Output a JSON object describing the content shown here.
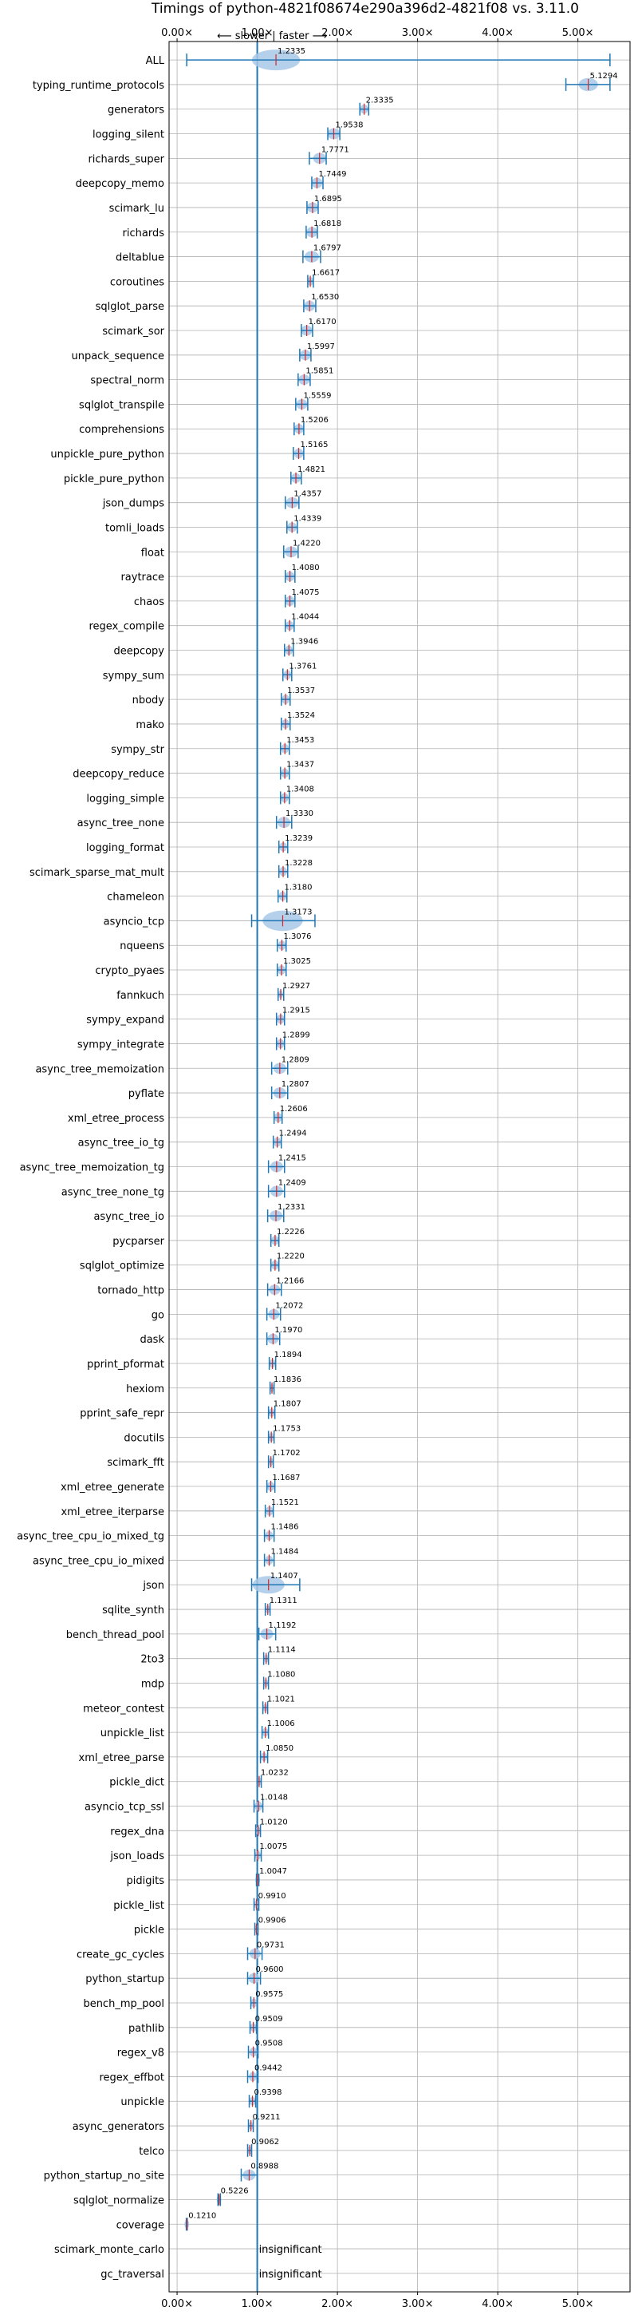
{
  "chart_data": {
    "type": "violin",
    "title": "Timings of python-4821f08674e290a396d2-4821f08 vs. 3.11.0",
    "note": "⟵ slower | faster ⟶",
    "xlim": [
      -0.1,
      5.65
    ],
    "reference_line": 1.0,
    "x_ticks": [
      {
        "v": 0,
        "label": "0.00×"
      },
      {
        "v": 1,
        "label": "1.00×"
      },
      {
        "v": 2,
        "label": "2.00×"
      },
      {
        "v": 3,
        "label": "3.00×"
      },
      {
        "v": 4,
        "label": "4.00×"
      },
      {
        "v": 5,
        "label": "5.00×"
      }
    ],
    "accent_color": "#1f77b4",
    "violin_color": "#a8c8e8",
    "median_color": "#d62728",
    "benchmarks": [
      {
        "name": "ALL",
        "value": 1.2335,
        "label": "1.2335",
        "lo": 0.12,
        "hi": 5.4,
        "spread": 0.3
      },
      {
        "name": "typing_runtime_protocols",
        "value": 5.1294,
        "label": "5.1294",
        "lo": 4.85,
        "hi": 5.4,
        "spread": 0.12
      },
      {
        "name": "generators",
        "value": 2.3335,
        "label": "2.3335",
        "lo": 2.28,
        "hi": 2.39,
        "spread": 0.05
      },
      {
        "name": "logging_silent",
        "value": 1.9538,
        "label": "1.9538",
        "lo": 1.88,
        "hi": 2.03,
        "spread": 0.08
      },
      {
        "name": "richards_super",
        "value": 1.7771,
        "label": "1.7771",
        "lo": 1.65,
        "hi": 1.86,
        "spread": 0.08
      },
      {
        "name": "deepcopy_memo",
        "value": 1.7449,
        "label": "1.7449",
        "lo": 1.68,
        "hi": 1.82,
        "spread": 0.07
      },
      {
        "name": "scimark_lu",
        "value": 1.6895,
        "label": "1.6895",
        "lo": 1.62,
        "hi": 1.76,
        "spread": 0.07
      },
      {
        "name": "richards",
        "value": 1.6818,
        "label": "1.6818",
        "lo": 1.61,
        "hi": 1.75,
        "spread": 0.07
      },
      {
        "name": "deltablue",
        "value": 1.6797,
        "label": "1.6797",
        "lo": 1.57,
        "hi": 1.79,
        "spread": 0.09
      },
      {
        "name": "coroutines",
        "value": 1.6617,
        "label": "1.6617",
        "lo": 1.63,
        "hi": 1.7,
        "spread": 0.04
      },
      {
        "name": "sqlglot_parse",
        "value": 1.653,
        "label": "1.6530",
        "lo": 1.58,
        "hi": 1.73,
        "spread": 0.07
      },
      {
        "name": "scimark_sor",
        "value": 1.617,
        "label": "1.6170",
        "lo": 1.55,
        "hi": 1.69,
        "spread": 0.07
      },
      {
        "name": "unpack_sequence",
        "value": 1.5997,
        "label": "1.5997",
        "lo": 1.53,
        "hi": 1.67,
        "spread": 0.07
      },
      {
        "name": "spectral_norm",
        "value": 1.5851,
        "label": "1.5851",
        "lo": 1.51,
        "hi": 1.66,
        "spread": 0.07
      },
      {
        "name": "sqlglot_transpile",
        "value": 1.5559,
        "label": "1.5559",
        "lo": 1.48,
        "hi": 1.63,
        "spread": 0.07
      },
      {
        "name": "comprehensions",
        "value": 1.5206,
        "label": "1.5206",
        "lo": 1.46,
        "hi": 1.58,
        "spread": 0.06
      },
      {
        "name": "unpickle_pure_python",
        "value": 1.5165,
        "label": "1.5165",
        "lo": 1.45,
        "hi": 1.58,
        "spread": 0.06
      },
      {
        "name": "pickle_pure_python",
        "value": 1.4821,
        "label": "1.4821",
        "lo": 1.42,
        "hi": 1.55,
        "spread": 0.06
      },
      {
        "name": "json_dumps",
        "value": 1.4357,
        "label": "1.4357",
        "lo": 1.35,
        "hi": 1.52,
        "spread": 0.08
      },
      {
        "name": "tomli_loads",
        "value": 1.4339,
        "label": "1.4339",
        "lo": 1.37,
        "hi": 1.5,
        "spread": 0.06
      },
      {
        "name": "float",
        "value": 1.422,
        "label": "1.4220",
        "lo": 1.33,
        "hi": 1.51,
        "spread": 0.08
      },
      {
        "name": "raytrace",
        "value": 1.408,
        "label": "1.4080",
        "lo": 1.35,
        "hi": 1.47,
        "spread": 0.06
      },
      {
        "name": "chaos",
        "value": 1.4075,
        "label": "1.4075",
        "lo": 1.35,
        "hi": 1.47,
        "spread": 0.06
      },
      {
        "name": "regex_compile",
        "value": 1.4044,
        "label": "1.4044",
        "lo": 1.35,
        "hi": 1.46,
        "spread": 0.05
      },
      {
        "name": "deepcopy",
        "value": 1.3946,
        "label": "1.3946",
        "lo": 1.34,
        "hi": 1.45,
        "spread": 0.05
      },
      {
        "name": "sympy_sum",
        "value": 1.3761,
        "label": "1.3761",
        "lo": 1.32,
        "hi": 1.43,
        "spread": 0.05
      },
      {
        "name": "nbody",
        "value": 1.3537,
        "label": "1.3537",
        "lo": 1.3,
        "hi": 1.41,
        "spread": 0.05
      },
      {
        "name": "mako",
        "value": 1.3524,
        "label": "1.3524",
        "lo": 1.3,
        "hi": 1.41,
        "spread": 0.05
      },
      {
        "name": "sympy_str",
        "value": 1.3453,
        "label": "1.3453",
        "lo": 1.29,
        "hi": 1.4,
        "spread": 0.05
      },
      {
        "name": "deepcopy_reduce",
        "value": 1.3437,
        "label": "1.3437",
        "lo": 1.29,
        "hi": 1.4,
        "spread": 0.05
      },
      {
        "name": "logging_simple",
        "value": 1.3408,
        "label": "1.3408",
        "lo": 1.29,
        "hi": 1.4,
        "spread": 0.05
      },
      {
        "name": "async_tree_none",
        "value": 1.333,
        "label": "1.3330",
        "lo": 1.24,
        "hi": 1.43,
        "spread": 0.08
      },
      {
        "name": "logging_format",
        "value": 1.3239,
        "label": "1.3239",
        "lo": 1.27,
        "hi": 1.38,
        "spread": 0.05
      },
      {
        "name": "scimark_sparse_mat_mult",
        "value": 1.3228,
        "label": "1.3228",
        "lo": 1.27,
        "hi": 1.38,
        "spread": 0.05
      },
      {
        "name": "chameleon",
        "value": 1.318,
        "label": "1.3180",
        "lo": 1.26,
        "hi": 1.37,
        "spread": 0.05
      },
      {
        "name": "asyncio_tcp",
        "value": 1.3173,
        "label": "1.3173",
        "lo": 0.93,
        "hi": 1.72,
        "spread": 0.25
      },
      {
        "name": "nqueens",
        "value": 1.3076,
        "label": "1.3076",
        "lo": 1.25,
        "hi": 1.36,
        "spread": 0.05
      },
      {
        "name": "crypto_pyaes",
        "value": 1.3025,
        "label": "1.3025",
        "lo": 1.25,
        "hi": 1.36,
        "spread": 0.05
      },
      {
        "name": "fannkuch",
        "value": 1.2927,
        "label": "1.2927",
        "lo": 1.26,
        "hi": 1.33,
        "spread": 0.03
      },
      {
        "name": "sympy_expand",
        "value": 1.2915,
        "label": "1.2915",
        "lo": 1.24,
        "hi": 1.34,
        "spread": 0.05
      },
      {
        "name": "sympy_integrate",
        "value": 1.2899,
        "label": "1.2899",
        "lo": 1.24,
        "hi": 1.34,
        "spread": 0.05
      },
      {
        "name": "async_tree_memoization",
        "value": 1.2809,
        "label": "1.2809",
        "lo": 1.18,
        "hi": 1.38,
        "spread": 0.08
      },
      {
        "name": "pyflate",
        "value": 1.2807,
        "label": "1.2807",
        "lo": 1.18,
        "hi": 1.38,
        "spread": 0.08
      },
      {
        "name": "xml_etree_process",
        "value": 1.2606,
        "label": "1.2606",
        "lo": 1.21,
        "hi": 1.31,
        "spread": 0.05
      },
      {
        "name": "async_tree_io_tg",
        "value": 1.2494,
        "label": "1.2494",
        "lo": 1.2,
        "hi": 1.3,
        "spread": 0.05
      },
      {
        "name": "async_tree_memoization_tg",
        "value": 1.2415,
        "label": "1.2415",
        "lo": 1.14,
        "hi": 1.34,
        "spread": 0.08
      },
      {
        "name": "async_tree_none_tg",
        "value": 1.2409,
        "label": "1.2409",
        "lo": 1.14,
        "hi": 1.34,
        "spread": 0.08
      },
      {
        "name": "async_tree_io",
        "value": 1.2331,
        "label": "1.2331",
        "lo": 1.13,
        "hi": 1.33,
        "spread": 0.08
      },
      {
        "name": "pycparser",
        "value": 1.2226,
        "label": "1.2226",
        "lo": 1.17,
        "hi": 1.27,
        "spread": 0.05
      },
      {
        "name": "sqlglot_optimize",
        "value": 1.222,
        "label": "1.2220",
        "lo": 1.17,
        "hi": 1.27,
        "spread": 0.05
      },
      {
        "name": "tornado_http",
        "value": 1.2166,
        "label": "1.2166",
        "lo": 1.13,
        "hi": 1.3,
        "spread": 0.07
      },
      {
        "name": "go",
        "value": 1.2072,
        "label": "1.2072",
        "lo": 1.12,
        "hi": 1.29,
        "spread": 0.07
      },
      {
        "name": "dask",
        "value": 1.197,
        "label": "1.1970",
        "lo": 1.12,
        "hi": 1.28,
        "spread": 0.07
      },
      {
        "name": "pprint_pformat",
        "value": 1.1894,
        "label": "1.1894",
        "lo": 1.15,
        "hi": 1.23,
        "spread": 0.04
      },
      {
        "name": "hexiom",
        "value": 1.1836,
        "label": "1.1836",
        "lo": 1.16,
        "hi": 1.21,
        "spread": 0.03
      },
      {
        "name": "pprint_safe_repr",
        "value": 1.1807,
        "label": "1.1807",
        "lo": 1.14,
        "hi": 1.22,
        "spread": 0.04
      },
      {
        "name": "docutils",
        "value": 1.1753,
        "label": "1.1753",
        "lo": 1.14,
        "hi": 1.21,
        "spread": 0.04
      },
      {
        "name": "scimark_fft",
        "value": 1.1702,
        "label": "1.1702",
        "lo": 1.14,
        "hi": 1.2,
        "spread": 0.03
      },
      {
        "name": "xml_etree_generate",
        "value": 1.1687,
        "label": "1.1687",
        "lo": 1.12,
        "hi": 1.22,
        "spread": 0.05
      },
      {
        "name": "xml_etree_iterparse",
        "value": 1.1521,
        "label": "1.1521",
        "lo": 1.1,
        "hi": 1.2,
        "spread": 0.05
      },
      {
        "name": "async_tree_cpu_io_mixed_tg",
        "value": 1.1486,
        "label": "1.1486",
        "lo": 1.09,
        "hi": 1.21,
        "spread": 0.05
      },
      {
        "name": "async_tree_cpu_io_mixed",
        "value": 1.1484,
        "label": "1.1484",
        "lo": 1.09,
        "hi": 1.21,
        "spread": 0.05
      },
      {
        "name": "json",
        "value": 1.1407,
        "label": "1.1407",
        "lo": 0.93,
        "hi": 1.53,
        "spread": 0.2
      },
      {
        "name": "sqlite_synth",
        "value": 1.1311,
        "label": "1.1311",
        "lo": 1.1,
        "hi": 1.16,
        "spread": 0.03
      },
      {
        "name": "bench_thread_pool",
        "value": 1.1192,
        "label": "1.1192",
        "lo": 1.02,
        "hi": 1.23,
        "spread": 0.08
      },
      {
        "name": "2to3",
        "value": 1.1114,
        "label": "1.1114",
        "lo": 1.08,
        "hi": 1.14,
        "spread": 0.03
      },
      {
        "name": "mdp",
        "value": 1.108,
        "label": "1.1080",
        "lo": 1.08,
        "hi": 1.14,
        "spread": 0.03
      },
      {
        "name": "meteor_contest",
        "value": 1.1021,
        "label": "1.1021",
        "lo": 1.07,
        "hi": 1.13,
        "spread": 0.03
      },
      {
        "name": "unpickle_list",
        "value": 1.1006,
        "label": "1.1006",
        "lo": 1.06,
        "hi": 1.14,
        "spread": 0.04
      },
      {
        "name": "xml_etree_parse",
        "value": 1.085,
        "label": "1.0850",
        "lo": 1.04,
        "hi": 1.13,
        "spread": 0.04
      },
      {
        "name": "pickle_dict",
        "value": 1.0232,
        "label": "1.0232",
        "lo": 1.0,
        "hi": 1.05,
        "spread": 0.02
      },
      {
        "name": "asyncio_tcp_ssl",
        "value": 1.0148,
        "label": "1.0148",
        "lo": 0.96,
        "hi": 1.07,
        "spread": 0.05
      },
      {
        "name": "regex_dna",
        "value": 1.012,
        "label": "1.0120",
        "lo": 0.98,
        "hi": 1.04,
        "spread": 0.03
      },
      {
        "name": "json_loads",
        "value": 1.0075,
        "label": "1.0075",
        "lo": 0.97,
        "hi": 1.05,
        "spread": 0.04
      },
      {
        "name": "pidigits",
        "value": 1.0047,
        "label": "1.0047",
        "lo": 0.99,
        "hi": 1.02,
        "spread": 0.02
      },
      {
        "name": "pickle_list",
        "value": 0.991,
        "label": "0.9910",
        "lo": 0.96,
        "hi": 1.02,
        "spread": 0.03
      },
      {
        "name": "pickle",
        "value": 0.9906,
        "label": "0.9906",
        "lo": 0.97,
        "hi": 1.01,
        "spread": 0.02
      },
      {
        "name": "create_gc_cycles",
        "value": 0.9731,
        "label": "0.9731",
        "lo": 0.88,
        "hi": 1.06,
        "spread": 0.07
      },
      {
        "name": "python_startup",
        "value": 0.96,
        "label": "0.9600",
        "lo": 0.88,
        "hi": 1.04,
        "spread": 0.07
      },
      {
        "name": "bench_mp_pool",
        "value": 0.9575,
        "label": "0.9575",
        "lo": 0.92,
        "hi": 1.0,
        "spread": 0.04
      },
      {
        "name": "pathlib",
        "value": 0.9509,
        "label": "0.9509",
        "lo": 0.91,
        "hi": 0.99,
        "spread": 0.04
      },
      {
        "name": "regex_v8",
        "value": 0.9508,
        "label": "0.9508",
        "lo": 0.89,
        "hi": 1.01,
        "spread": 0.05
      },
      {
        "name": "regex_effbot",
        "value": 0.9442,
        "label": "0.9442",
        "lo": 0.88,
        "hi": 1.01,
        "spread": 0.05
      },
      {
        "name": "unpickle",
        "value": 0.9398,
        "label": "0.9398",
        "lo": 0.9,
        "hi": 0.98,
        "spread": 0.04
      },
      {
        "name": "async_generators",
        "value": 0.9211,
        "label": "0.9211",
        "lo": 0.89,
        "hi": 0.95,
        "spread": 0.03
      },
      {
        "name": "telco",
        "value": 0.9062,
        "label": "0.9062",
        "lo": 0.88,
        "hi": 0.93,
        "spread": 0.03
      },
      {
        "name": "python_startup_no_site",
        "value": 0.8988,
        "label": "0.8988",
        "lo": 0.8,
        "hi": 1.0,
        "spread": 0.08
      },
      {
        "name": "sqlglot_normalize",
        "value": 0.5226,
        "label": "0.5226",
        "lo": 0.51,
        "hi": 0.54,
        "spread": 0.02
      },
      {
        "name": "coverage",
        "value": 0.121,
        "label": "0.1210",
        "lo": 0.115,
        "hi": 0.127,
        "spread": 0.01
      },
      {
        "name": "scimark_monte_carlo",
        "value": null,
        "label": "insignificant"
      },
      {
        "name": "gc_traversal",
        "value": null,
        "label": "insignificant"
      }
    ]
  }
}
